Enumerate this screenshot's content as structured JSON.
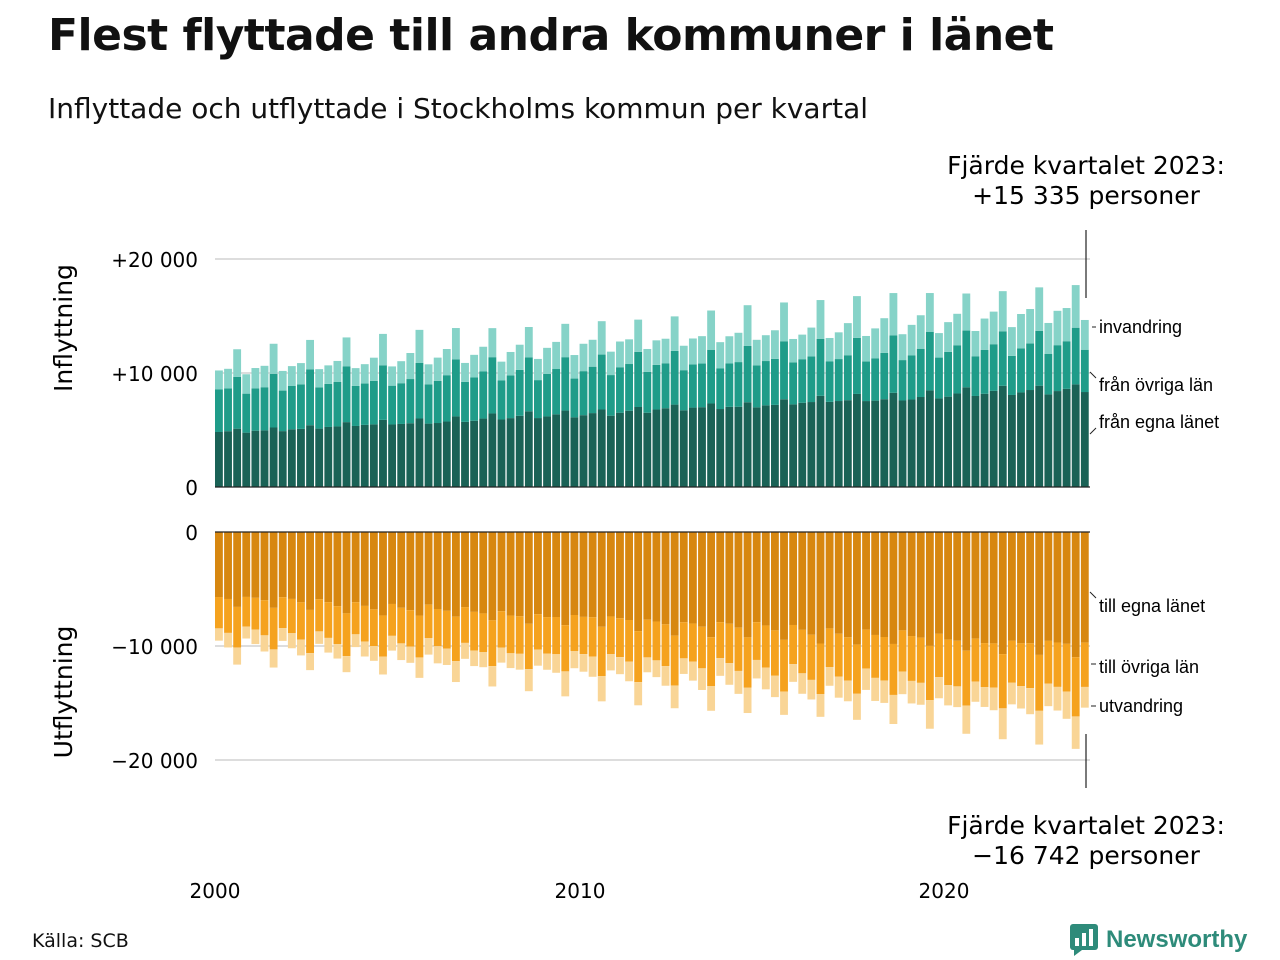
{
  "title": "Flest flyttade till andra kommuner i länet",
  "subtitle": "Inflyttade och utflyttade i Stockholms kommun per kvartal",
  "source": "Källa: SCB",
  "brand": "Newsworthy",
  "colors": {
    "in_egna": "#1a6256",
    "in_ovriga": "#1f9c89",
    "in_invandring": "#86d3c8",
    "out_egna": "#d78710",
    "out_ovriga": "#f5a21e",
    "out_utvandring": "#f9d596",
    "grid": "#dddddd",
    "brand": "#2e8b7a"
  },
  "chart_data": {
    "type": "bar",
    "stacked": true,
    "frequency": "quarterly",
    "first_period": "2000 Q1",
    "last_period": "2023 Q4",
    "x_ticks": [
      "2000",
      "2010",
      "2020"
    ],
    "top_panel": {
      "ylabel": "Inflyttning",
      "y_ticks": [
        "0",
        "+10 000",
        "+20 000"
      ],
      "y_tick_values": [
        0,
        10000,
        20000
      ],
      "ylim": [
        0,
        23000
      ],
      "series_labels": [
        "från egna länet",
        "från övriga län",
        "invandring"
      ],
      "annotation_line1": "Fjärde kvartalet 2023:",
      "annotation_line2": "+15 335 personer"
    },
    "bottom_panel": {
      "ylabel": "Utflyttning",
      "y_ticks": [
        "0",
        "−10 000",
        "−20 000"
      ],
      "y_tick_values": [
        0,
        -10000,
        -20000
      ],
      "ylim": [
        -23000,
        0
      ],
      "series_labels": [
        "till egna länet",
        "till övriga län",
        "utvandring"
      ],
      "annotation_line1": "Fjärde kvartalet 2023:",
      "annotation_line2": "−16 742 personer"
    },
    "in_egna_start": 4800,
    "in_egna_end": 8700,
    "in_ovriga_start": 3900,
    "in_ovriga_end": 4100,
    "in_invandring_start": 1800,
    "in_invandring_end": 3000,
    "out_egna_start": 5800,
    "out_egna_end": 10200,
    "out_ovriga_start": 3000,
    "out_ovriga_end": 4200,
    "out_utvandring_start": 1200,
    "out_utvandring_end": 2200
  }
}
